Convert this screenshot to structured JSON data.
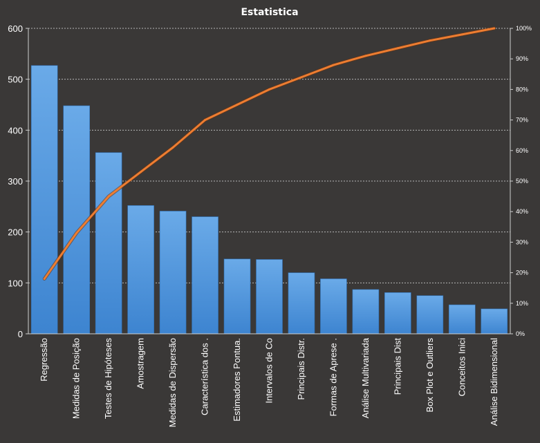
{
  "chart_data": {
    "type": "bar",
    "title": "Estatistica",
    "categories": [
      "Regressão",
      "Medidas de Posição",
      "Testes de Hipóteses",
      "Amostragem",
      "Medidas de Dispersão",
      "Característica dos .",
      "Estimadores Pontua.",
      "Intervalos de Co",
      "Principais Distr.",
      "Formas  de Aprese .",
      "Análise Multivariada",
      "Principais Dist",
      "Box Plot e Outliers",
      "Conceitos Inici",
      "Análise Bidimensional"
    ],
    "series": [
      {
        "type": "bar",
        "color": "#4f95dd",
        "values": [
          527,
          448,
          356,
          252,
          241,
          230,
          147,
          146,
          120,
          108,
          87,
          81,
          75,
          57,
          49
        ]
      },
      {
        "type": "line",
        "axis": "right",
        "color": "#ed7d31",
        "values": [
          18,
          33,
          45,
          53,
          61,
          70,
          75,
          80,
          84,
          88,
          91,
          93.5,
          96,
          98,
          100
        ]
      }
    ],
    "ylim": [
      0,
      600
    ],
    "yticks": [
      "0",
      "100",
      "200",
      "300",
      "400",
      "500",
      "600"
    ],
    "y2lim": [
      0,
      100
    ],
    "y2ticks": [
      "0%",
      "10%",
      "20%",
      "30%",
      "40%",
      "50%",
      "60%",
      "70%",
      "80%",
      "90%",
      "100%"
    ],
    "grid": true,
    "legend": "none"
  }
}
